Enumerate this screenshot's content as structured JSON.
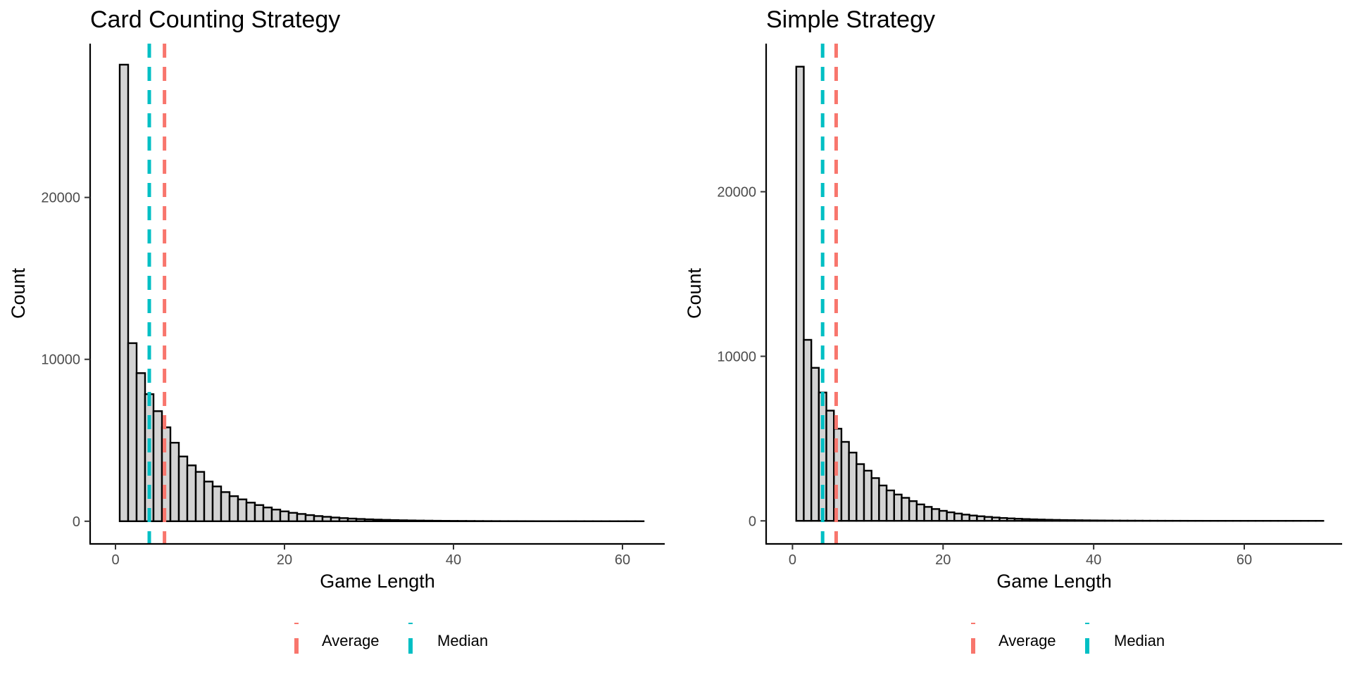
{
  "colors": {
    "average": "#F8766D",
    "median": "#00BFC4",
    "bar_fill": "#D3D3D3",
    "bar_outline": "#000000"
  },
  "chart_data": [
    {
      "type": "bar",
      "title": "Card Counting Strategy",
      "xlabel": "Game Length",
      "ylabel": "Count",
      "xlim": [
        -3,
        65
      ],
      "ylim": [
        -1400,
        29500
      ],
      "x_ticks": [
        0,
        20,
        40,
        60
      ],
      "y_ticks": [
        0,
        10000,
        20000
      ],
      "bin_width": 1,
      "x": [
        1,
        2,
        3,
        4,
        5,
        6,
        7,
        8,
        9,
        10,
        11,
        12,
        13,
        14,
        15,
        16,
        17,
        18,
        19,
        20,
        21,
        22,
        23,
        24,
        25,
        26,
        27,
        28,
        29,
        30,
        31,
        32,
        33,
        34,
        35,
        36,
        37,
        38,
        39,
        40,
        41,
        42,
        43,
        44,
        45,
        46,
        47,
        48,
        49,
        50,
        51,
        52,
        53,
        54,
        55,
        56,
        57,
        58,
        59,
        60,
        61,
        62
      ],
      "values": [
        28200,
        11000,
        9150,
        7850,
        6800,
        5800,
        4850,
        4000,
        3450,
        3050,
        2450,
        2150,
        1800,
        1550,
        1350,
        1150,
        1000,
        850,
        720,
        610,
        520,
        450,
        380,
        320,
        275,
        230,
        195,
        165,
        140,
        118,
        100,
        85,
        72,
        60,
        50,
        42,
        36,
        30,
        25,
        21,
        18,
        15,
        12,
        10,
        8,
        7,
        6,
        5,
        4,
        3,
        3,
        2,
        2,
        2,
        1,
        1,
        1,
        1,
        1,
        1,
        1,
        1
      ],
      "lines": {
        "average": 5.8,
        "median": 4
      },
      "legend": {
        "position": "bottom",
        "items": [
          {
            "label": "Average",
            "color": "#F8766D"
          },
          {
            "label": "Median",
            "color": "#00BFC4"
          }
        ]
      },
      "grid": false
    },
    {
      "type": "bar",
      "title": "Simple Strategy",
      "xlabel": "Game Length",
      "ylabel": "Count",
      "xlim": [
        -3.5,
        73
      ],
      "ylim": [
        -1400,
        29000
      ],
      "x_ticks": [
        0,
        20,
        40,
        60
      ],
      "y_ticks": [
        0,
        10000,
        20000
      ],
      "bin_width": 1,
      "x": [
        1,
        2,
        3,
        4,
        5,
        6,
        7,
        8,
        9,
        10,
        11,
        12,
        13,
        14,
        15,
        16,
        17,
        18,
        19,
        20,
        21,
        22,
        23,
        24,
        25,
        26,
        27,
        28,
        29,
        30,
        31,
        32,
        33,
        34,
        35,
        36,
        37,
        38,
        39,
        40,
        41,
        42,
        43,
        44,
        45,
        46,
        47,
        48,
        49,
        50,
        51,
        52,
        53,
        54,
        55,
        56,
        57,
        58,
        59,
        60,
        61,
        62,
        63,
        64,
        65,
        66,
        67,
        68,
        69,
        70
      ],
      "values": [
        27600,
        11000,
        9300,
        7800,
        6700,
        5600,
        4800,
        4150,
        3450,
        3050,
        2600,
        2150,
        1850,
        1600,
        1400,
        1200,
        1000,
        850,
        720,
        610,
        520,
        445,
        380,
        325,
        280,
        240,
        205,
        175,
        150,
        128,
        110,
        94,
        80,
        68,
        58,
        50,
        43,
        37,
        31,
        27,
        23,
        19,
        16,
        14,
        12,
        10,
        8,
        7,
        6,
        5,
        4,
        4,
        3,
        3,
        2,
        2,
        2,
        1,
        1,
        1,
        1,
        1,
        1,
        1,
        1,
        1,
        1,
        1,
        1,
        1
      ],
      "lines": {
        "average": 5.8,
        "median": 4
      },
      "legend": {
        "position": "bottom",
        "items": [
          {
            "label": "Average",
            "color": "#F8766D"
          },
          {
            "label": "Median",
            "color": "#00BFC4"
          }
        ]
      },
      "grid": false
    }
  ]
}
